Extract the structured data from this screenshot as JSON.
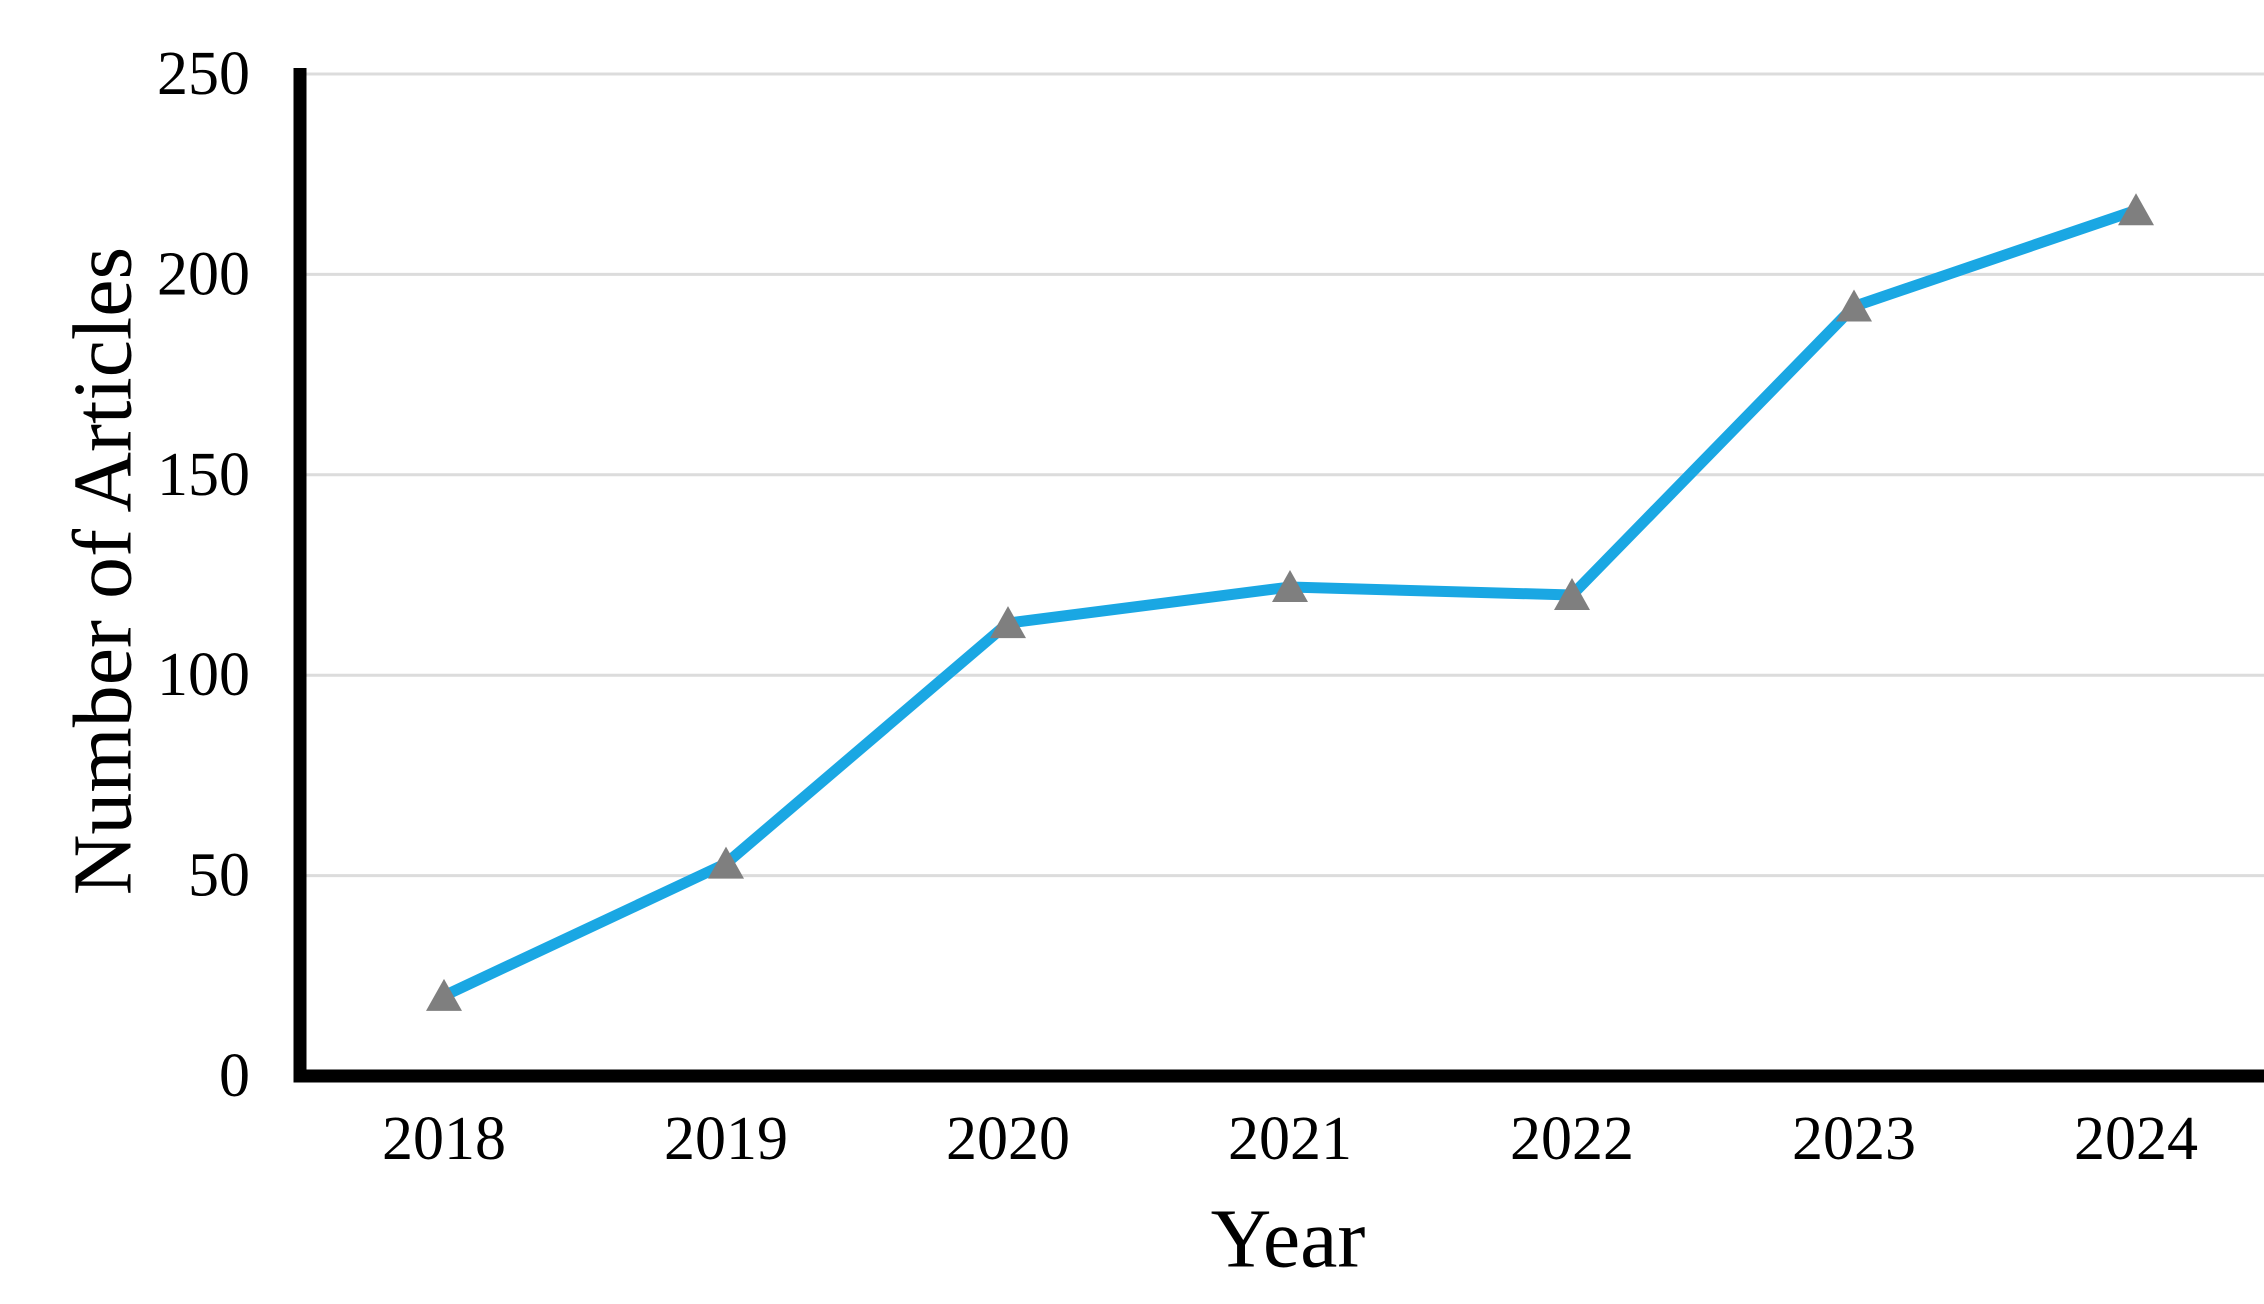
{
  "chart_data": {
    "type": "line",
    "title": "",
    "xlabel": "Year",
    "ylabel": "Number of Articles",
    "categories": [
      "2018",
      "2019",
      "2020",
      "2021",
      "2022",
      "2023",
      "2024"
    ],
    "series": [
      {
        "name": "Number of Articles",
        "values": [
          20,
          53,
          113,
          122,
          120,
          192,
          216
        ]
      }
    ],
    "ylim": [
      0,
      250
    ],
    "yticks": [
      0,
      50,
      100,
      150,
      200,
      250
    ],
    "grid": "horizontal",
    "legend_position": "none",
    "line_color": "#1AA7E3",
    "marker_shape": "triangle-up",
    "marker_color": "#7F7F7F",
    "gridline_color": "#DCDCDC",
    "axis_color": "#000000",
    "background_color": "#FFFFFF"
  }
}
